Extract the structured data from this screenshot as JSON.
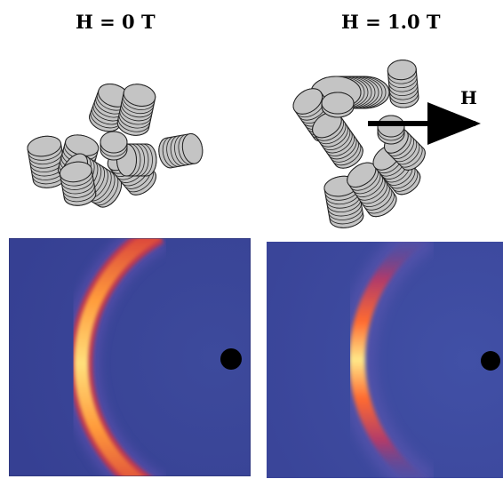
{
  "labels": {
    "left_title": "H = 0 T",
    "right_title": "H = 1.0 T",
    "field_arrow": "H"
  },
  "colors": {
    "disc_fill": "#c4c4c4",
    "disc_edge": "#222222",
    "background_blue": "#3e4aa0",
    "ring_hot": "#ffe27a",
    "ring_warm": "#e8452a",
    "beamstop": "#000000"
  }
}
